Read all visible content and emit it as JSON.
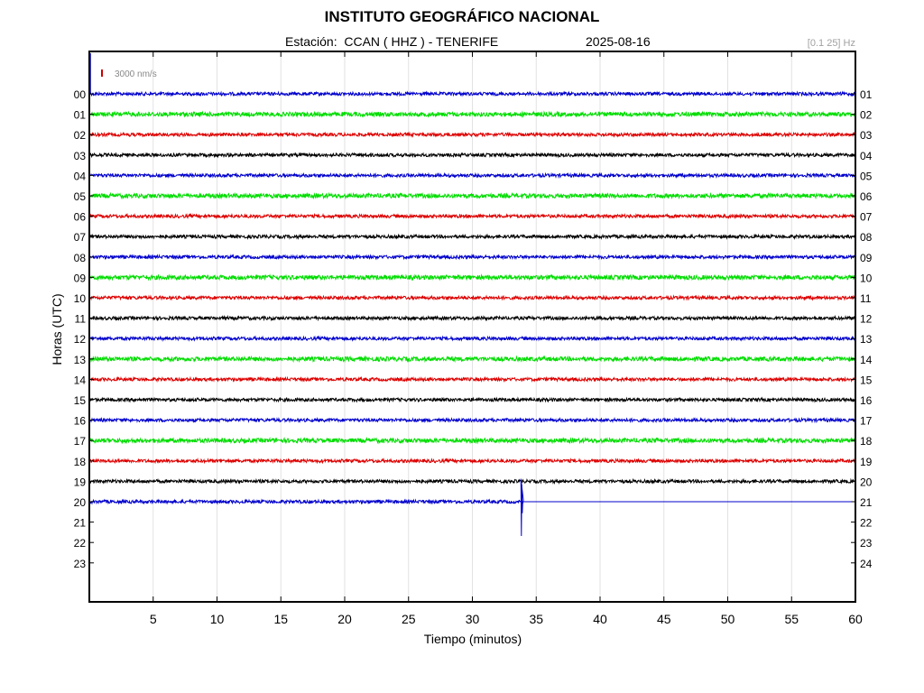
{
  "header": {
    "title": "INSTITUTO GEOGRÁFICO NACIONAL",
    "station_label": "Estación:  CCAN ( HHZ ) - TENERIFE",
    "date": "2025-08-16",
    "filter": "[0.1 25] Hz",
    "scale_label": "3000 nm/s"
  },
  "colors": {
    "trace_cycle": [
      "#0000cc",
      "#00dd00",
      "#dd0000",
      "#000000"
    ],
    "scale_bar": "#cc0000",
    "grid": "#e2e2e2",
    "frame": "#000000"
  },
  "chart_data": {
    "type": "line",
    "title": "INSTITUTO GEOGRÁFICO NACIONAL",
    "xlabel": "Tiempo (minutos)",
    "ylabel": "Horas (UTC)",
    "xlim": [
      0,
      60
    ],
    "x_ticks": [
      5,
      10,
      15,
      20,
      25,
      30,
      35,
      40,
      45,
      50,
      55,
      60
    ],
    "y_ticks_left": [
      "00",
      "01",
      "02",
      "03",
      "04",
      "05",
      "06",
      "07",
      "08",
      "09",
      "10",
      "11",
      "12",
      "13",
      "14",
      "15",
      "16",
      "17",
      "18",
      "19",
      "20",
      "21",
      "22",
      "23"
    ],
    "y_ticks_right": [
      "01",
      "02",
      "03",
      "04",
      "05",
      "06",
      "07",
      "08",
      "09",
      "10",
      "11",
      "12",
      "13",
      "14",
      "15",
      "16",
      "17",
      "18",
      "19",
      "20",
      "21",
      "22",
      "23",
      "24"
    ],
    "grid": true,
    "traces_recorded_hours": 21,
    "recording_end_minute": 34,
    "event": {
      "hour": 20,
      "minute": 33.8,
      "amplitude_rows": 2.8
    }
  }
}
